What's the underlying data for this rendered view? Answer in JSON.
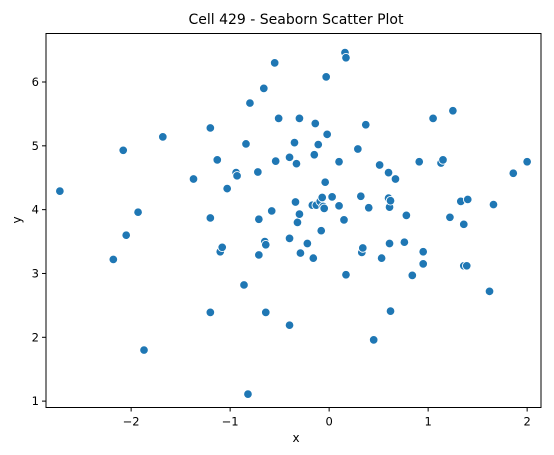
{
  "chart_data": {
    "type": "scatter",
    "title": "Cell 429 - Seaborn Scatter Plot",
    "xlabel": "x",
    "ylabel": "y",
    "xlim": [
      -2.86,
      2.14
    ],
    "ylim": [
      0.9,
      6.76
    ],
    "xticks": [
      -2,
      -1,
      0,
      1,
      2
    ],
    "yticks": [
      1,
      2,
      3,
      4,
      5,
      6
    ],
    "grid": false,
    "point_color": "#1f77b4",
    "points": [
      [
        -2.72,
        4.29
      ],
      [
        -2.18,
        3.22
      ],
      [
        -2.08,
        4.93
      ],
      [
        -2.05,
        3.6
      ],
      [
        -1.93,
        3.96
      ],
      [
        -1.87,
        1.8
      ],
      [
        -1.68,
        5.14
      ],
      [
        -1.37,
        4.48
      ],
      [
        -1.2,
        5.28
      ],
      [
        -1.2,
        3.87
      ],
      [
        -1.2,
        2.39
      ],
      [
        -1.13,
        4.78
      ],
      [
        -1.1,
        3.34
      ],
      [
        -1.08,
        3.41
      ],
      [
        -1.03,
        4.33
      ],
      [
        -0.94,
        4.58
      ],
      [
        -0.93,
        4.53
      ],
      [
        -0.86,
        2.82
      ],
      [
        -0.84,
        5.03
      ],
      [
        -0.82,
        1.11
      ],
      [
        -0.8,
        5.67
      ],
      [
        -0.72,
        4.59
      ],
      [
        -0.71,
        3.85
      ],
      [
        -0.71,
        3.29
      ],
      [
        -0.66,
        5.9
      ],
      [
        -0.65,
        3.5
      ],
      [
        -0.64,
        3.45
      ],
      [
        -0.64,
        2.39
      ],
      [
        -0.58,
        3.98
      ],
      [
        -0.55,
        6.3
      ],
      [
        -0.54,
        4.76
      ],
      [
        -0.51,
        5.43
      ],
      [
        -0.4,
        4.82
      ],
      [
        -0.4,
        3.55
      ],
      [
        -0.4,
        2.19
      ],
      [
        -0.35,
        5.05
      ],
      [
        -0.34,
        4.12
      ],
      [
        -0.33,
        4.72
      ],
      [
        -0.32,
        3.8
      ],
      [
        -0.3,
        5.43
      ],
      [
        -0.3,
        3.93
      ],
      [
        -0.29,
        3.32
      ],
      [
        -0.22,
        3.47
      ],
      [
        -0.17,
        4.07
      ],
      [
        -0.16,
        3.24
      ],
      [
        -0.15,
        4.86
      ],
      [
        -0.14,
        5.35
      ],
      [
        -0.13,
        4.07
      ],
      [
        -0.11,
        5.02
      ],
      [
        -0.09,
        4.13
      ],
      [
        -0.08,
        3.67
      ],
      [
        -0.07,
        4.19
      ],
      [
        -0.06,
        4.05
      ],
      [
        -0.05,
        4.02
      ],
      [
        -0.04,
        4.43
      ],
      [
        -0.03,
        6.08
      ],
      [
        -0.02,
        5.18
      ],
      [
        0.03,
        4.2
      ],
      [
        0.1,
        4.06
      ],
      [
        0.1,
        4.75
      ],
      [
        0.15,
        3.84
      ],
      [
        0.16,
        6.46
      ],
      [
        0.17,
        6.38
      ],
      [
        0.17,
        2.98
      ],
      [
        0.29,
        4.95
      ],
      [
        0.32,
        4.21
      ],
      [
        0.33,
        3.33
      ],
      [
        0.34,
        3.4
      ],
      [
        0.37,
        5.33
      ],
      [
        0.4,
        4.03
      ],
      [
        0.45,
        1.96
      ],
      [
        0.51,
        4.7
      ],
      [
        0.53,
        3.24
      ],
      [
        0.6,
        4.18
      ],
      [
        0.6,
        4.58
      ],
      [
        0.61,
        4.04
      ],
      [
        0.61,
        3.47
      ],
      [
        0.62,
        2.41
      ],
      [
        0.62,
        4.14
      ],
      [
        0.67,
        4.48
      ],
      [
        0.76,
        3.49
      ],
      [
        0.78,
        3.91
      ],
      [
        0.84,
        2.97
      ],
      [
        0.91,
        4.75
      ],
      [
        0.95,
        3.34
      ],
      [
        0.95,
        3.15
      ],
      [
        1.05,
        5.43
      ],
      [
        1.13,
        4.73
      ],
      [
        1.15,
        4.78
      ],
      [
        1.22,
        3.88
      ],
      [
        1.25,
        5.55
      ],
      [
        1.33,
        4.13
      ],
      [
        1.36,
        3.77
      ],
      [
        1.36,
        3.12
      ],
      [
        1.39,
        3.12
      ],
      [
        1.4,
        4.16
      ],
      [
        1.62,
        2.72
      ],
      [
        1.66,
        4.08
      ],
      [
        1.86,
        4.57
      ],
      [
        2.0,
        4.75
      ]
    ]
  }
}
